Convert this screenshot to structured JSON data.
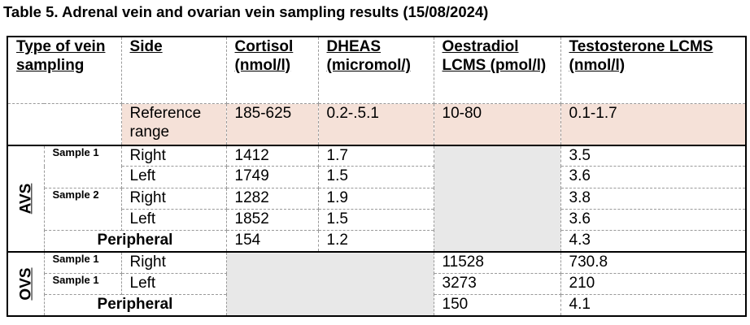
{
  "title": "Table 5. Adrenal vein and ovarian vein sampling results (15/08/2024)",
  "headers": {
    "type": "Type of vein sampling",
    "side": "Side",
    "cortisol": "Cortisol (nmol/l)",
    "dheas": "DHEAS (micromol/)",
    "oestradiol": "Oestradiol LCMS (pmol/l)",
    "testosterone": "Testosterone LCMS (nmol/l)"
  },
  "reference": {
    "label": "Reference range",
    "cortisol": "185-625",
    "dheas": "0.2-.5.1",
    "oestradiol": "10-80",
    "testosterone": "0.1-1.7"
  },
  "avs": {
    "label": "AVS",
    "sample1": "Sample 1",
    "sample2": "Sample 2",
    "peripheral_label": "Peripheral",
    "rows": [
      {
        "side": "Right",
        "cortisol": "1412",
        "dheas": "1.7",
        "testosterone": "3.5"
      },
      {
        "side": "Left",
        "cortisol": "1749",
        "dheas": "1.5",
        "testosterone": "3.6"
      },
      {
        "side": "Right",
        "cortisol": "1282",
        "dheas": "1.9",
        "testosterone": "3.8"
      },
      {
        "side": "Left",
        "cortisol": "1852",
        "dheas": "1.5",
        "testosterone": "3.6"
      }
    ],
    "peripheral": {
      "cortisol": "154",
      "dheas": "1.2",
      "testosterone": "4.3"
    }
  },
  "ovs": {
    "label": "OVS",
    "sample1a": "Sample 1",
    "sample1b": "Sample 1",
    "peripheral_label": "Peripheral",
    "rows": [
      {
        "side": "Right",
        "oestradiol": "11528",
        "testosterone": "730.8"
      },
      {
        "side": "Left",
        "oestradiol": "3273",
        "testosterone": "210"
      }
    ],
    "peripheral": {
      "oestradiol": "150",
      "testosterone": "4.1"
    }
  }
}
